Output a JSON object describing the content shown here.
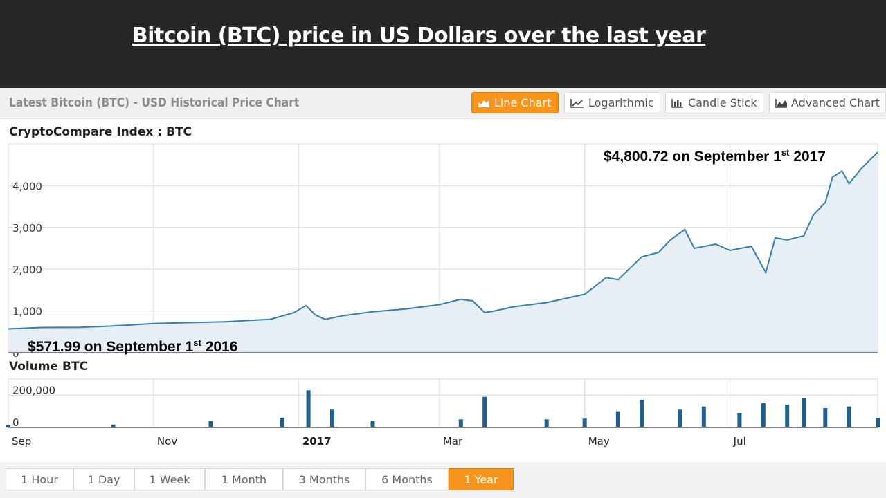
{
  "slide_title": "Bitcoin (BTC) price in US Dollars over the last year",
  "chart_header": {
    "heading": "Latest Bitcoin (BTC) - USD Historical Price Chart",
    "chart_types": [
      {
        "label": "Line Chart",
        "icon": "area-chart-icon",
        "active": true
      },
      {
        "label": "Logarithmic",
        "icon": "line-chart-icon",
        "active": false
      },
      {
        "label": "Candle Stick",
        "icon": "candle-chart-icon",
        "active": false
      },
      {
        "label": "Advanced Chart",
        "icon": "mountain-chart-icon",
        "active": false
      }
    ]
  },
  "time_ranges": [
    {
      "label": "1 Hour",
      "active": false
    },
    {
      "label": "1 Day",
      "active": false
    },
    {
      "label": "1 Week",
      "active": false
    },
    {
      "label": "1 Month",
      "active": false
    },
    {
      "label": "3 Months",
      "active": false
    },
    {
      "label": "6 Months",
      "active": false
    },
    {
      "label": "1 Year",
      "active": true
    }
  ],
  "colors": {
    "line": "#3a7ea6",
    "area": "#e6eef6",
    "volume": "#1f5f8b",
    "accent": "#f7941d",
    "title_band": "#262626"
  },
  "chart_data": [
    {
      "type": "area",
      "title": "CryptoCompare Index : BTC",
      "ylim": [
        0,
        5000
      ],
      "yticks": [
        {
          "value": 0,
          "label": "0"
        },
        {
          "value": 1000,
          "label": "1,000"
        },
        {
          "value": 2000,
          "label": "2,000"
        },
        {
          "value": 3000,
          "label": "3,000"
        },
        {
          "value": 4000,
          "label": "4,000"
        }
      ],
      "xlim": [
        "2016-09-01",
        "2017-09-01"
      ],
      "grid": true,
      "annotations": {
        "end": {
          "text": "$4,800.72 on September 1",
          "sup": "st",
          "tail": " 2017",
          "x": "2017-09-01",
          "value": 4800.72
        },
        "start": {
          "text": "$571.99 on September 1",
          "sup": "st",
          "tail": " 2016",
          "x": "2016-09-01",
          "value": 571.99
        }
      },
      "series": [
        {
          "x": [
            "2016-09-01",
            "2016-09-15",
            "2016-10-01",
            "2016-10-15",
            "2016-11-01",
            "2016-11-15",
            "2016-12-01",
            "2016-12-10",
            "2016-12-20",
            "2016-12-30",
            "2017-01-04",
            "2017-01-08",
            "2017-01-12",
            "2017-01-20",
            "2017-02-01",
            "2017-02-15",
            "2017-03-01",
            "2017-03-10",
            "2017-03-15",
            "2017-03-20",
            "2017-03-24",
            "2017-04-01",
            "2017-04-15",
            "2017-05-01",
            "2017-05-10",
            "2017-05-15",
            "2017-05-25",
            "2017-06-01",
            "2017-06-06",
            "2017-06-12",
            "2017-06-16",
            "2017-06-25",
            "2017-07-01",
            "2017-07-10",
            "2017-07-16",
            "2017-07-20",
            "2017-07-25",
            "2017-08-01",
            "2017-08-05",
            "2017-08-10",
            "2017-08-13",
            "2017-08-17",
            "2017-08-20",
            "2017-08-25",
            "2017-09-01"
          ],
          "values": [
            572,
            605,
            610,
            640,
            700,
            720,
            740,
            770,
            800,
            960,
            1130,
            900,
            800,
            890,
            980,
            1050,
            1150,
            1280,
            1240,
            960,
            1000,
            1100,
            1200,
            1400,
            1800,
            1750,
            2300,
            2400,
            2700,
            2950,
            2500,
            2600,
            2450,
            2550,
            1920,
            2750,
            2700,
            2800,
            3300,
            3600,
            4200,
            4350,
            4050,
            4400,
            4800.72
          ]
        }
      ]
    },
    {
      "type": "bar",
      "title": "Volume BTC",
      "ylim": [
        0,
        300000
      ],
      "yticks": [
        {
          "value": 0,
          "label": "0"
        },
        {
          "value": 200000,
          "label": "200,000"
        }
      ],
      "xticks": [
        {
          "x": "2016-09-01",
          "label": "Sep",
          "bold": false
        },
        {
          "x": "2016-11-01",
          "label": "Nov",
          "bold": false
        },
        {
          "x": "2017-01-01",
          "label": "2017",
          "bold": true
        },
        {
          "x": "2017-03-01",
          "label": "Mar",
          "bold": false
        },
        {
          "x": "2017-05-01",
          "label": "May",
          "bold": false
        },
        {
          "x": "2017-07-01",
          "label": "Jul",
          "bold": false
        }
      ],
      "series": [
        {
          "x": [
            "2016-09-01",
            "2016-10-15",
            "2016-11-25",
            "2016-12-25",
            "2017-01-05",
            "2017-01-15",
            "2017-02-01",
            "2017-03-10",
            "2017-03-20",
            "2017-04-15",
            "2017-05-01",
            "2017-05-15",
            "2017-05-25",
            "2017-06-10",
            "2017-06-20",
            "2017-07-05",
            "2017-07-15",
            "2017-07-25",
            "2017-08-01",
            "2017-08-10",
            "2017-08-20",
            "2017-09-01"
          ],
          "values": [
            15000,
            18000,
            40000,
            60000,
            230000,
            110000,
            40000,
            50000,
            190000,
            50000,
            55000,
            100000,
            170000,
            110000,
            130000,
            90000,
            150000,
            140000,
            180000,
            120000,
            130000,
            60000
          ]
        }
      ]
    }
  ]
}
